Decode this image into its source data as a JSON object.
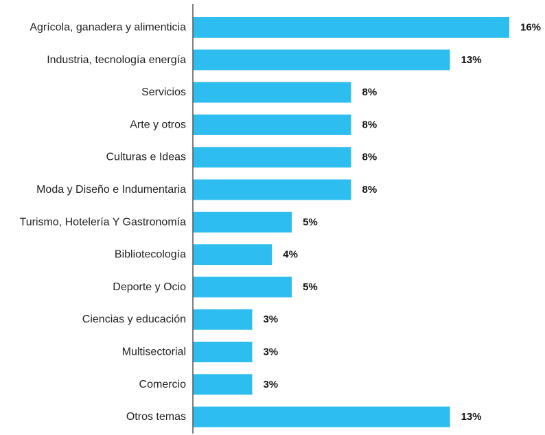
{
  "chart_data": {
    "type": "bar",
    "orientation": "horizontal",
    "categories": [
      "Agrícola, ganadera y alimenticia",
      "Industria, tecnología  energía",
      "Servicios",
      "Arte y otros",
      "Culturas e Ideas",
      "Moda y Diseño e Indumentaria",
      "Turismo, Hotelería Y Gastronomía",
      "Bibliotecología",
      "Deporte y Ocio",
      "Ciencias y educación",
      "Multisectorial",
      "Comercio",
      "Otros temas"
    ],
    "values": [
      16,
      13,
      8,
      8,
      8,
      8,
      5,
      4,
      5,
      3,
      3,
      3,
      13
    ],
    "value_labels": [
      "16%",
      "13%",
      "8%",
      "8%",
      "8%",
      "8%",
      "5%",
      "4%",
      "5%",
      "3%",
      "3%",
      "3%",
      "13%"
    ],
    "title": "",
    "xlabel": "",
    "ylabel": "",
    "xlim": [
      0,
      16
    ],
    "grid": false,
    "legend": "none",
    "bar_color": "#2EBDEF",
    "axis_color": "#555555"
  }
}
